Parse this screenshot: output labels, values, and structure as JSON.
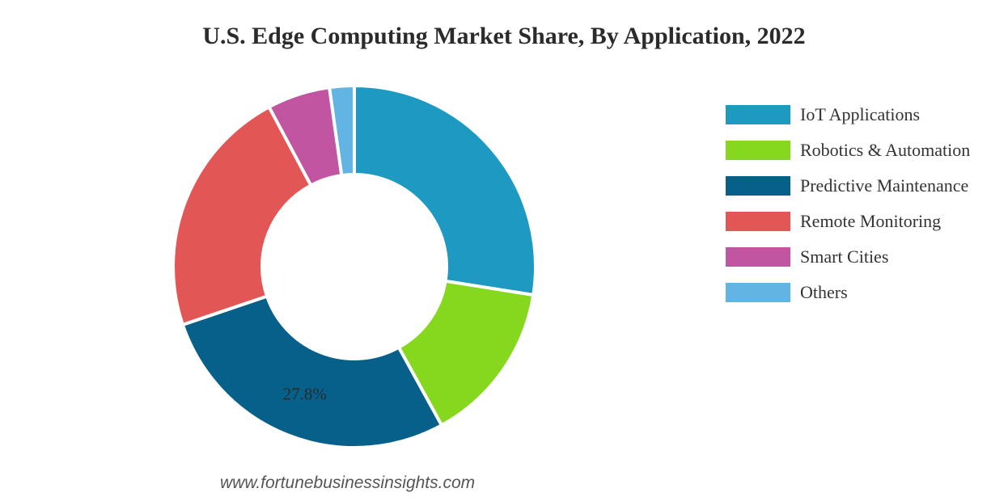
{
  "chart_data": {
    "type": "pie",
    "title": "U.S. Edge Computing Market Share, By Application, 2022",
    "categories": [
      "IoT Applications",
      "Robotics & Automation",
      "Predictive Maintenance",
      "Remote Monitoring",
      "Smart Cities",
      "Others"
    ],
    "values": [
      27.5,
      14.5,
      27.8,
      22.4,
      5.6,
      2.2
    ],
    "colors": [
      "#1e9ac2",
      "#86d81e",
      "#06608a",
      "#e35656",
      "#c255a2",
      "#62b4e3"
    ],
    "data_labels": [
      {
        "category": "Predictive Maintenance",
        "text": "27.8%"
      }
    ],
    "donut": true,
    "legend_position": "right"
  },
  "watermark": "www.fortunebusinessinsights.com"
}
